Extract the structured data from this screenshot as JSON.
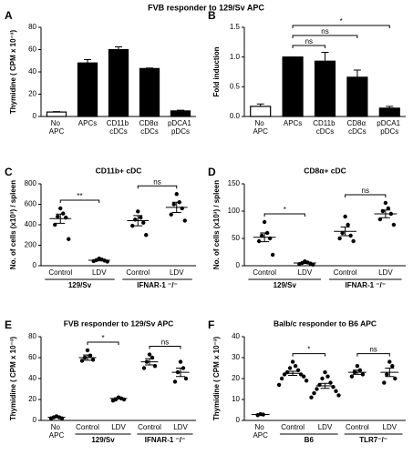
{
  "title": "FVB responder to 129/Sv APC",
  "chart_data": [
    {
      "label": "A",
      "type": "bar",
      "ylabel": "Thymidine ( CPM x 10⁻³)",
      "categories": [
        "No APC",
        "APCs",
        "CD11b cDCs",
        "CD8α cDCs",
        "pDCA1 pDCs"
      ],
      "values": [
        4,
        48,
        60,
        43,
        5
      ],
      "errors": [
        0.4,
        3,
        2.5,
        0.5,
        0.6
      ],
      "colors": [
        "#ffffff",
        "#000000",
        "#000000",
        "#000000",
        "#000000"
      ],
      "ylim": [
        0,
        80
      ],
      "yticks": [
        0,
        20,
        40,
        60,
        80
      ]
    },
    {
      "label": "B",
      "type": "bar",
      "ylabel": "Fold induction",
      "categories": [
        "No APC",
        "APCs",
        "CD11b cDCs",
        "CD8α cDCs",
        "pDCA1 pDCs"
      ],
      "values": [
        0.17,
        1.0,
        0.93,
        0.66,
        0.14
      ],
      "errors": [
        0.04,
        0,
        0.15,
        0.12,
        0.03
      ],
      "colors": [
        "#ffffff",
        "#000000",
        "#000000",
        "#000000",
        "#000000"
      ],
      "ylim": [
        0,
        1.5
      ],
      "yticks": [
        {
          "value": 0,
          "label": "0.0"
        },
        {
          "value": 0.5,
          "label": "0.5"
        },
        {
          "value": 1,
          "label": "1.0"
        },
        {
          "value": 1.5,
          "label": "1.5"
        }
      ],
      "annotations": [
        {
          "text": "*",
          "between": [
            1,
            4
          ]
        },
        {
          "text": "ns",
          "between": [
            1,
            3
          ]
        },
        {
          "text": "ns",
          "between": [
            1,
            2
          ]
        }
      ]
    },
    {
      "label": "C",
      "type": "strip",
      "title": "CD11b+ cDC",
      "ylabel": "No. of cells (x10³) / spleen",
      "series": [
        {
          "name": "Control",
          "values": [
            560,
            510,
            480,
            470,
            400,
            260
          ],
          "mean": 460,
          "error": 45
        },
        {
          "name": "LDV",
          "values": [
            70,
            60,
            55,
            50,
            45,
            40
          ],
          "mean": 53,
          "error": 5
        },
        {
          "name": "Control",
          "values": [
            530,
            470,
            450,
            420,
            390,
            300
          ],
          "mean": 440,
          "error": 50
        },
        {
          "name": "LDV",
          "values": [
            700,
            620,
            600,
            560,
            500,
            440
          ],
          "mean": 570,
          "error": 50
        }
      ],
      "groups": [
        {
          "label": "129/Sv",
          "series": [
            0,
            1
          ]
        },
        {
          "label": "IFNAR-1 ⁻/⁻",
          "series": [
            2,
            3
          ]
        }
      ],
      "ylim": [
        0,
        800
      ],
      "yticks": [
        0,
        200,
        400,
        600,
        800
      ],
      "annotations": [
        {
          "text": "**",
          "between": [
            0,
            1
          ]
        },
        {
          "text": "ns",
          "between": [
            2,
            3
          ]
        }
      ]
    },
    {
      "label": "D",
      "type": "strip",
      "title": "CD8α+ cDC",
      "ylabel": "No. of cells (x10³) / spleen",
      "series": [
        {
          "name": "Control",
          "values": [
            80,
            60,
            55,
            50,
            45,
            20
          ],
          "mean": 52,
          "error": 8
        },
        {
          "name": "LDV",
          "values": [
            8,
            6,
            5,
            4,
            3,
            2
          ],
          "mean": 5,
          "error": 1
        },
        {
          "name": "Control",
          "values": [
            90,
            75,
            60,
            55,
            50,
            45
          ],
          "mean": 63,
          "error": 8
        },
        {
          "name": "LDV",
          "values": [
            115,
            105,
            100,
            95,
            85,
            75
          ],
          "mean": 95,
          "error": 7
        }
      ],
      "groups": [
        {
          "label": "129/Sv",
          "series": [
            0,
            1
          ]
        },
        {
          "label": "IFNAR-1 ⁻/⁻",
          "series": [
            2,
            3
          ]
        }
      ],
      "ylim": [
        0,
        150
      ],
      "yticks": [
        0,
        50,
        100,
        150
      ],
      "annotations": [
        {
          "text": "*",
          "between": [
            0,
            1
          ]
        },
        {
          "text": "ns",
          "between": [
            2,
            3
          ]
        }
      ]
    },
    {
      "label": "E",
      "type": "strip",
      "title": "FVB responder to 129/Sv APC",
      "ylabel": "Thymidine ( CPM x 10⁻³)",
      "series": [
        {
          "name": "No APC",
          "values": [
            4,
            3,
            3,
            2,
            2
          ],
          "mean": 3,
          "error": 0.4
        },
        {
          "name": "Control",
          "values": [
            67,
            62,
            60,
            58,
            57
          ],
          "mean": 60,
          "error": 2.5
        },
        {
          "name": "LDV",
          "values": [
            22,
            21,
            20,
            20,
            19
          ],
          "mean": 21,
          "error": 0.6
        },
        {
          "name": "Control",
          "values": [
            63,
            60,
            56,
            52,
            50
          ],
          "mean": 56,
          "error": 3
        },
        {
          "name": "LDV",
          "values": [
            56,
            50,
            46,
            40,
            37
          ],
          "mean": 46,
          "error": 4
        }
      ],
      "groups": [
        {
          "label": "129/Sv",
          "series": [
            1,
            2
          ]
        },
        {
          "label": "IFNAR-1 ⁻/⁻",
          "series": [
            3,
            4
          ]
        }
      ],
      "ylim": [
        0,
        80
      ],
      "yticks": [
        0,
        20,
        40,
        60,
        80
      ],
      "annotations": [
        {
          "text": "*",
          "between": [
            1,
            2
          ]
        },
        {
          "text": "ns",
          "between": [
            3,
            4
          ]
        }
      ]
    },
    {
      "label": "F",
      "type": "strip",
      "title": "Balb/c responder to B6 APC",
      "ylabel": "Thymidine ( CPM x 10⁻³)",
      "series": [
        {
          "name": "No APC",
          "values": [
            3,
            2.8,
            2.5
          ],
          "mean": 2.8,
          "error": 0.2
        },
        {
          "name": "Control",
          "values": [
            28,
            26,
            25,
            24,
            23,
            22,
            22,
            21,
            20,
            19,
            17
          ],
          "mean": 22.5,
          "error": 1
        },
        {
          "name": "LDV",
          "values": [
            23,
            21,
            20,
            18,
            17,
            16,
            15,
            14,
            13,
            12,
            11
          ],
          "mean": 16.5,
          "error": 1.2
        },
        {
          "name": "Control",
          "values": [
            26,
            24,
            23,
            22,
            21
          ],
          "mean": 23,
          "error": 1
        },
        {
          "name": "LDV",
          "values": [
            28,
            26,
            22,
            20,
            18
          ],
          "mean": 23,
          "error": 2
        }
      ],
      "groups": [
        {
          "label": "B6",
          "series": [
            1,
            2
          ]
        },
        {
          "label": "TLR7⁻/⁻",
          "series": [
            3,
            4
          ]
        }
      ],
      "ylim": [
        0,
        40
      ],
      "yticks": [
        0,
        10,
        20,
        30,
        40
      ],
      "annotations": [
        {
          "text": "*",
          "between": [
            1,
            2
          ]
        },
        {
          "text": "ns",
          "between": [
            3,
            4
          ]
        }
      ]
    }
  ]
}
